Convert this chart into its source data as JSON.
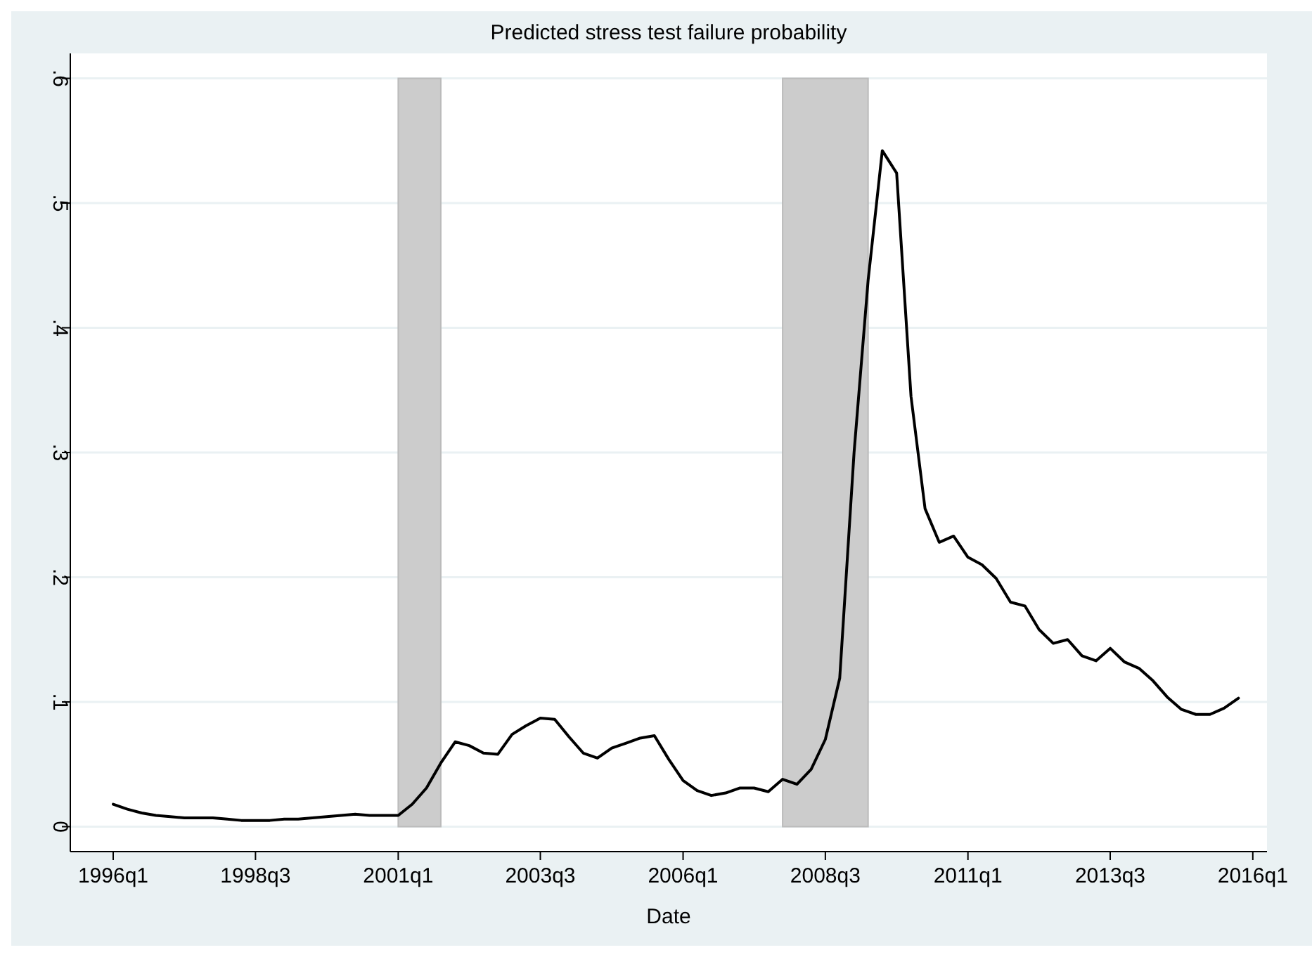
{
  "chart_data": {
    "type": "line",
    "title": "Predicted stress test failure probability",
    "xlabel": "Date",
    "x": [
      "1996-01",
      "1996-04",
      "1996-07",
      "1996-10",
      "1997-01",
      "1997-04",
      "1997-07",
      "1997-10",
      "1998-01",
      "1998-04",
      "1998-07",
      "1998-10",
      "1999-01",
      "1999-04",
      "1999-07",
      "1999-10",
      "2000-01",
      "2000-04",
      "2000-07",
      "2000-10",
      "2001-01",
      "2001-04",
      "2001-07",
      "2001-10",
      "2002-01",
      "2002-04",
      "2002-07",
      "2002-10",
      "2003-01",
      "2003-04",
      "2003-07",
      "2003-10",
      "2004-01",
      "2004-04",
      "2004-07",
      "2004-10",
      "2005-01",
      "2005-04",
      "2005-07",
      "2005-10",
      "2006-01",
      "2006-04",
      "2006-07",
      "2006-10",
      "2007-01",
      "2007-04",
      "2007-07",
      "2007-10",
      "2008-01",
      "2008-04",
      "2008-07",
      "2008-10",
      "2009-01",
      "2009-04",
      "2009-07",
      "2009-10",
      "2010-01",
      "2010-04",
      "2010-07",
      "2010-10",
      "2011-01",
      "2011-04",
      "2011-07",
      "2011-10",
      "2012-01",
      "2012-04",
      "2012-07",
      "2012-10",
      "2013-01",
      "2013-04",
      "2013-07",
      "2013-10",
      "2014-01",
      "2014-04",
      "2014-07",
      "2014-10",
      "2015-01",
      "2015-04",
      "2015-07",
      "2015-10"
    ],
    "series": [
      {
        "color": "#000000",
        "values": [
          0.018,
          0.014,
          0.011,
          0.009,
          0.008,
          0.007,
          0.007,
          0.007,
          0.006,
          0.005,
          0.005,
          0.005,
          0.006,
          0.006,
          0.007,
          0.008,
          0.009,
          0.01,
          0.009,
          0.009,
          0.009,
          0.018,
          0.031,
          0.051,
          0.068,
          0.065,
          0.059,
          0.058,
          0.074,
          0.081,
          0.087,
          0.086,
          0.072,
          0.059,
          0.055,
          0.063,
          0.067,
          0.071,
          0.073,
          0.054,
          0.037,
          0.029,
          0.025,
          0.027,
          0.031,
          0.031,
          0.028,
          0.038,
          0.034,
          0.046,
          0.07,
          0.119,
          0.3,
          0.438,
          0.542,
          0.524,
          0.345,
          0.255,
          0.228,
          0.233,
          0.216,
          0.21,
          0.199,
          0.18,
          0.177,
          0.158,
          0.147,
          0.15,
          0.137,
          0.133,
          0.143,
          0.132,
          0.127,
          0.117,
          0.104,
          0.094,
          0.09,
          0.09,
          0.095,
          0.103
        ]
      }
    ],
    "xlim": [
      "1995-04",
      "2016-04"
    ],
    "xticks": [
      {
        "value": "1996-01",
        "label": "1996q1"
      },
      {
        "value": "1998-07",
        "label": "1998q3"
      },
      {
        "value": "2001-01",
        "label": "2001q1"
      },
      {
        "value": "2003-07",
        "label": "2003q3"
      },
      {
        "value": "2006-01",
        "label": "2006q1"
      },
      {
        "value": "2008-07",
        "label": "2008q3"
      },
      {
        "value": "2011-01",
        "label": "2011q1"
      },
      {
        "value": "2013-07",
        "label": "2013q3"
      },
      {
        "value": "2016-01",
        "label": "2016q1"
      }
    ],
    "ylim": [
      -0.02,
      0.62
    ],
    "yticks": [
      {
        "value": 0,
        "label": "0"
      },
      {
        "value": 0.1,
        "label": ".1"
      },
      {
        "value": 0.2,
        "label": ".2"
      },
      {
        "value": 0.3,
        "label": ".3"
      },
      {
        "value": 0.4,
        "label": ".4"
      },
      {
        "value": 0.5,
        "label": ".5"
      },
      {
        "value": 0.6,
        "label": ".6"
      }
    ],
    "bands": [
      {
        "axis": "x",
        "from": "2001-01",
        "to": "2001-10",
        "color": "#cccccc"
      },
      {
        "axis": "x",
        "from": "2007-10",
        "to": "2009-04",
        "color": "#cccccc"
      }
    ],
    "grid": "y",
    "marker": "none",
    "line_style": "solid"
  }
}
